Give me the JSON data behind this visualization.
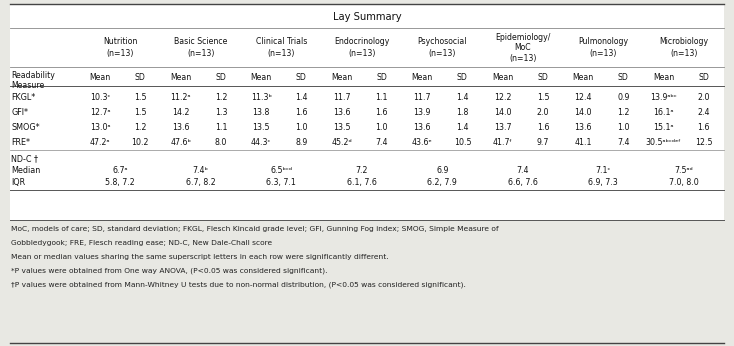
{
  "title": "Lay Summary",
  "bg_color": "#e8e8e3",
  "table_bg": "#ffffff",
  "col_groups": [
    {
      "label": "Nutrition\n(n=13)"
    },
    {
      "label": "Basic Science\n(n=13)"
    },
    {
      "label": "Clinical Trials\n(n=13)"
    },
    {
      "label": "Endocrinology\n(n=13)"
    },
    {
      "label": "Psychosocial\n(n=13)"
    },
    {
      "label": "Epidemiology/\nMoC\n(n=13)"
    },
    {
      "label": "Pulmonology\n(n=13)"
    },
    {
      "label": "Microbiology\n(n=13)"
    }
  ],
  "row_header": "Readability\nMeasure",
  "data_rows": [
    [
      "FKGL*",
      "10.3ᶜ",
      "1.5",
      "11.2ᵃ",
      "1.2",
      "11.3ᵇ",
      "1.4",
      "11.7",
      "1.1",
      "11.7",
      "1.4",
      "12.2",
      "1.5",
      "12.4",
      "0.9",
      "13.9ᵃᵇᶜ",
      "2.0"
    ],
    [
      "GFI*",
      "12.7ᵃ",
      "1.5",
      "14.2",
      "1.3",
      "13.8",
      "1.6",
      "13.6",
      "1.6",
      "13.9",
      "1.8",
      "14.0",
      "2.0",
      "14.0",
      "1.2",
      "16.1ᵃ",
      "2.4"
    ],
    [
      "SMOG*",
      "13.0ᵃ",
      "1.2",
      "13.6",
      "1.1",
      "13.5",
      "1.0",
      "13.5",
      "1.0",
      "13.6",
      "1.4",
      "13.7",
      "1.6",
      "13.6",
      "1.0",
      "15.1ᵃ",
      "1.6"
    ],
    [
      "FRE*",
      "47.2ᵃ",
      "10.2",
      "47.6ᵇ",
      "8.0",
      "44.3ᶜ",
      "8.9",
      "45.2ᵈ",
      "7.4",
      "43.6ᵉ",
      "10.5",
      "41.7ᶠ",
      "9.7",
      "41.1",
      "7.4",
      "30.5ᵃᵇᶜᵈᵉᶠ",
      "12.5"
    ]
  ],
  "ndc_label": "ND-C †",
  "median_vals": [
    "6.7ᵃ",
    "7.4ᵇ",
    "6.5ᵇᶜᵈ",
    "7.2",
    "6.9",
    "7.4",
    "7.1ᶜ",
    "7.5ᵃᵈ"
  ],
  "iqr_vals": [
    "5.8, 7.2",
    "6.7, 8.2",
    "6.3, 7.1",
    "6.1, 7.6",
    "6.2, 7.9",
    "6.6, 7.6",
    "6.9, 7.3",
    "7.0, 8.0"
  ],
  "footnotes": [
    "MoC, models of care; SD, standard deviation; FKGL, Flesch Kincaid grade level; GFI, Gunning Fog index; SMOG, Simple Measure of",
    "Gobbledygook; FRE, Flesch reading ease; ND-C, New Dale-Chall score",
    "Mean or median values sharing the same superscript letters in each row were significantly different.",
    "*P values were obtained from One way ANOVA, (P<0.05 was considered significant).",
    "†P values were obtained from Mann-Whitney U tests due to non-normal distribution, (P<0.05 was considered significant)."
  ]
}
